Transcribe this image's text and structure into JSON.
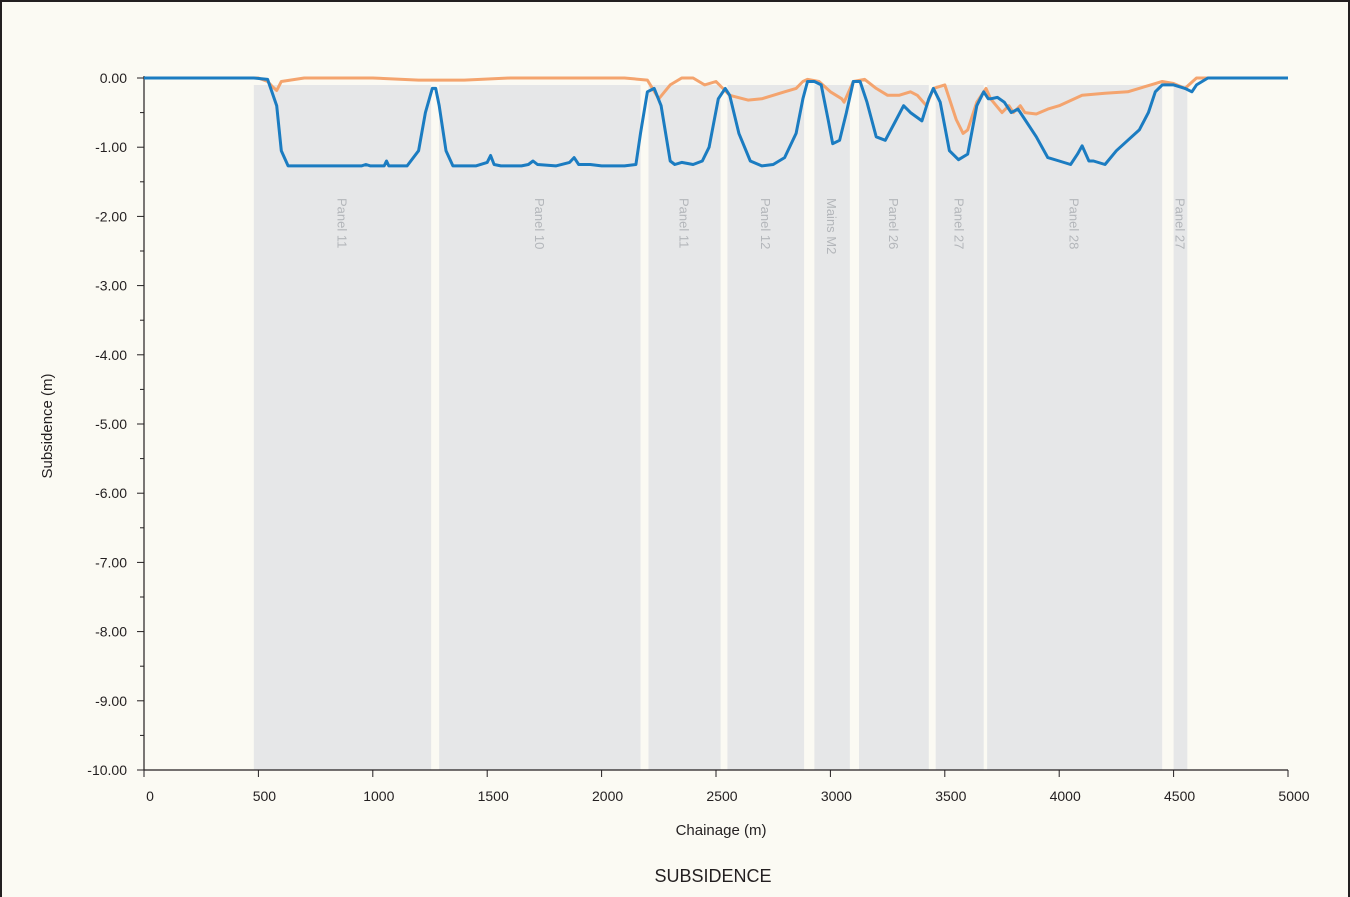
{
  "chart_data": {
    "type": "line",
    "title": "SUBSIDENCE",
    "xlabel": "Chainage (m)",
    "ylabel": "Subsidence (m)",
    "xlim": [
      0,
      5000
    ],
    "ylim": [
      -10,
      0
    ],
    "x_ticks": [
      0,
      500,
      1000,
      1500,
      2000,
      2500,
      3000,
      3500,
      4000,
      4500,
      5000
    ],
    "x_tick_labels": [
      "0",
      "500",
      "1000",
      "1500",
      "2000",
      "2500",
      "3000",
      "3500",
      "4000",
      "4500",
      "5000"
    ],
    "y_ticks": [
      0,
      -1,
      -2,
      -3,
      -4,
      -5,
      -6,
      -7,
      -8,
      -9,
      -10
    ],
    "y_tick_labels": [
      "0.00",
      "-1.00",
      "-2.00",
      "-3.00",
      "-4.00",
      "-5.00",
      "-6.00",
      "-7.00",
      "-8.00",
      "-9.00",
      "-10.00"
    ],
    "grid": false,
    "legend": "none",
    "panels": [
      {
        "label": "Panel 11",
        "start": 480,
        "end": 1255
      },
      {
        "label": "Panel 10",
        "start": 1290,
        "end": 2170
      },
      {
        "label": "Panel 11",
        "start": 2205,
        "end": 2520
      },
      {
        "label": "Panel 12",
        "start": 2550,
        "end": 2885
      },
      {
        "label": "Mains M2",
        "start": 2930,
        "end": 3085
      },
      {
        "label": "Panel 26",
        "start": 3125,
        "end": 3430
      },
      {
        "label": "Panel 27",
        "start": 3460,
        "end": 3670
      },
      {
        "label": "Panel 28",
        "start": 3685,
        "end": 4450
      },
      {
        "label": "Panel 27",
        "start": 4500,
        "end": 4560
      }
    ],
    "series": [
      {
        "color": "#1b7cc1",
        "x": [
          0,
          480,
          540,
          580,
          600,
          630,
          700,
          800,
          900,
          950,
          970,
          990,
          1050,
          1060,
          1070,
          1080,
          1150,
          1200,
          1230,
          1260,
          1275,
          1290,
          1320,
          1350,
          1400,
          1450,
          1500,
          1515,
          1530,
          1560,
          1650,
          1680,
          1700,
          1720,
          1800,
          1860,
          1880,
          1900,
          1950,
          2000,
          2100,
          2150,
          2170,
          2200,
          2230,
          2260,
          2300,
          2320,
          2350,
          2400,
          2440,
          2470,
          2510,
          2540,
          2560,
          2600,
          2650,
          2700,
          2750,
          2800,
          2850,
          2880,
          2900,
          2930,
          2960,
          2990,
          3010,
          3040,
          3070,
          3100,
          3130,
          3160,
          3200,
          3240,
          3280,
          3320,
          3350,
          3400,
          3430,
          3450,
          3480,
          3520,
          3560,
          3600,
          3640,
          3670,
          3690,
          3700,
          3730,
          3760,
          3790,
          3820,
          3850,
          3900,
          3950,
          4000,
          4050,
          4080,
          4100,
          4130,
          4150,
          4200,
          4250,
          4300,
          4350,
          4390,
          4420,
          4450,
          4500,
          4550,
          4580,
          4600,
          4650,
          5000
        ],
        "y": [
          0,
          0,
          -0.02,
          -0.4,
          -1.05,
          -1.27,
          -1.27,
          -1.27,
          -1.27,
          -1.27,
          -1.25,
          -1.27,
          -1.27,
          -1.2,
          -1.27,
          -1.27,
          -1.27,
          -1.05,
          -0.5,
          -0.15,
          -0.15,
          -0.4,
          -1.05,
          -1.27,
          -1.27,
          -1.27,
          -1.22,
          -1.12,
          -1.25,
          -1.27,
          -1.27,
          -1.25,
          -1.2,
          -1.25,
          -1.27,
          -1.22,
          -1.15,
          -1.25,
          -1.25,
          -1.27,
          -1.27,
          -1.25,
          -0.8,
          -0.2,
          -0.15,
          -0.4,
          -1.2,
          -1.25,
          -1.22,
          -1.25,
          -1.2,
          -1.0,
          -0.3,
          -0.15,
          -0.25,
          -0.8,
          -1.2,
          -1.27,
          -1.25,
          -1.15,
          -0.8,
          -0.3,
          -0.05,
          -0.05,
          -0.1,
          -0.6,
          -0.95,
          -0.9,
          -0.5,
          -0.05,
          -0.05,
          -0.35,
          -0.85,
          -0.9,
          -0.65,
          -0.4,
          -0.5,
          -0.62,
          -0.3,
          -0.15,
          -0.35,
          -1.05,
          -1.18,
          -1.1,
          -0.4,
          -0.2,
          -0.3,
          -0.3,
          -0.28,
          -0.35,
          -0.5,
          -0.45,
          -0.6,
          -0.85,
          -1.15,
          -1.2,
          -1.25,
          -1.1,
          -0.98,
          -1.2,
          -1.2,
          -1.25,
          -1.05,
          -0.9,
          -0.75,
          -0.5,
          -0.2,
          -0.1,
          -0.1,
          -0.15,
          -0.2,
          -0.1,
          0,
          0
        ]
      },
      {
        "color": "#f4a46e",
        "x": [
          0,
          500,
          540,
          560,
          580,
          600,
          700,
          800,
          1000,
          1200,
          1400,
          1600,
          1800,
          2000,
          2100,
          2200,
          2250,
          2300,
          2350,
          2400,
          2450,
          2500,
          2560,
          2640,
          2700,
          2750,
          2800,
          2850,
          2880,
          2900,
          2950,
          3000,
          3050,
          3060,
          3100,
          3150,
          3200,
          3250,
          3300,
          3350,
          3380,
          3420,
          3450,
          3500,
          3550,
          3580,
          3600,
          3640,
          3680,
          3700,
          3750,
          3780,
          3800,
          3830,
          3850,
          3900,
          3950,
          4000,
          4100,
          4200,
          4300,
          4400,
          4450,
          4500,
          4550,
          4600,
          5000
        ],
        "y": [
          0,
          0,
          -0.05,
          -0.12,
          -0.18,
          -0.05,
          0,
          0,
          0,
          -0.03,
          -0.03,
          0,
          0,
          0,
          0,
          -0.03,
          -0.3,
          -0.1,
          0,
          0,
          -0.1,
          -0.05,
          -0.25,
          -0.32,
          -0.3,
          -0.25,
          -0.2,
          -0.15,
          -0.05,
          -0.02,
          -0.05,
          -0.2,
          -0.3,
          -0.35,
          -0.05,
          -0.02,
          -0.15,
          -0.25,
          -0.25,
          -0.2,
          -0.25,
          -0.4,
          -0.15,
          -0.1,
          -0.6,
          -0.8,
          -0.75,
          -0.35,
          -0.15,
          -0.3,
          -0.5,
          -0.4,
          -0.5,
          -0.4,
          -0.5,
          -0.52,
          -0.45,
          -0.4,
          -0.25,
          -0.22,
          -0.2,
          -0.1,
          -0.05,
          -0.08,
          -0.15,
          0,
          0
        ]
      }
    ]
  }
}
